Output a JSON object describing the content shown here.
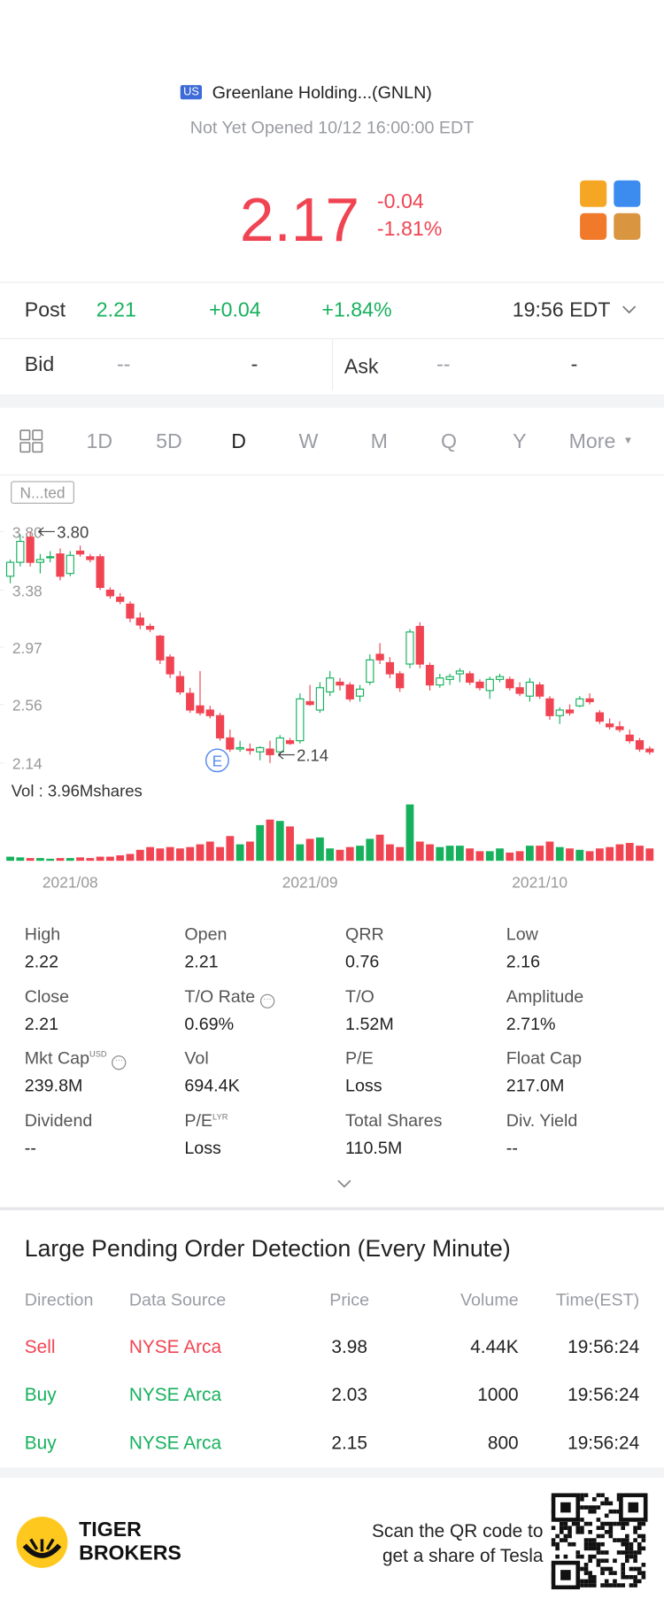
{
  "header": {
    "badge": "US",
    "name": "Greenlane Holding...(GNLN)",
    "status": "Not Yet Opened 10/12 16:00:00 EDT"
  },
  "quote": {
    "price": "2.17",
    "change": "-0.04",
    "change_pct": "-1.81%"
  },
  "post": {
    "label": "Post",
    "price": "2.21",
    "change": "+0.04",
    "change_pct": "+1.84%",
    "time": "19:56 EDT"
  },
  "bidask": {
    "bid_label": "Bid",
    "bid": "--",
    "bid_size": "-",
    "ask_label": "Ask",
    "ask": "--",
    "ask_size": "-"
  },
  "periods": [
    "1D",
    "5D",
    "D",
    "W",
    "M",
    "Q",
    "Y",
    "More"
  ],
  "chart": {
    "type": "candlestick",
    "tag": "N...ted",
    "max_label": "3.80",
    "min_label": "2.14",
    "event": "E",
    "volume_label": "Vol  : 3.96Mshares",
    "ylim": [
      2.1,
      3.85
    ],
    "yticks": [
      {
        "value": 3.8,
        "label": "3.80"
      },
      3.38,
      2.97,
      2.56,
      2.14
    ],
    "categories": [
      null,
      null,
      null,
      null,
      null,
      null,
      "2021/08",
      null,
      null,
      null,
      null,
      null,
      null,
      null,
      null,
      null,
      null,
      null,
      null,
      null,
      null,
      null,
      null,
      null,
      null,
      null,
      null,
      null,
      null,
      null,
      "2021/09",
      null,
      null,
      null,
      null,
      null,
      null,
      null,
      null,
      null,
      null,
      null,
      null,
      null,
      null,
      null,
      null,
      null,
      null,
      null,
      null,
      null,
      null,
      "2021/10",
      null,
      null,
      null,
      null,
      null,
      null,
      null,
      null,
      null,
      null,
      null
    ],
    "candles": [
      {
        "o": 3.48,
        "h": 3.6,
        "l": 3.43,
        "c": 3.58
      },
      {
        "o": 3.58,
        "h": 3.78,
        "l": 3.55,
        "c": 3.73
      },
      {
        "o": 3.76,
        "h": 3.8,
        "l": 3.55,
        "c": 3.58
      },
      {
        "o": 3.58,
        "h": 3.64,
        "l": 3.5,
        "c": 3.6
      },
      {
        "o": 3.62,
        "h": 3.66,
        "l": 3.58,
        "c": 3.62
      },
      {
        "o": 3.64,
        "h": 3.68,
        "l": 3.45,
        "c": 3.48
      },
      {
        "o": 3.5,
        "h": 3.66,
        "l": 3.48,
        "c": 3.63
      },
      {
        "o": 3.66,
        "h": 3.7,
        "l": 3.62,
        "c": 3.64
      },
      {
        "o": 3.62,
        "h": 3.64,
        "l": 3.58,
        "c": 3.6
      },
      {
        "o": 3.62,
        "h": 3.64,
        "l": 3.38,
        "c": 3.4
      },
      {
        "o": 3.38,
        "h": 3.4,
        "l": 3.32,
        "c": 3.34
      },
      {
        "o": 3.33,
        "h": 3.36,
        "l": 3.28,
        "c": 3.3
      },
      {
        "o": 3.28,
        "h": 3.3,
        "l": 3.15,
        "c": 3.18
      },
      {
        "o": 3.18,
        "h": 3.22,
        "l": 3.1,
        "c": 3.13
      },
      {
        "o": 3.12,
        "h": 3.14,
        "l": 3.08,
        "c": 3.1
      },
      {
        "o": 3.05,
        "h": 3.06,
        "l": 2.85,
        "c": 2.88
      },
      {
        "o": 2.9,
        "h": 2.92,
        "l": 2.75,
        "c": 2.78
      },
      {
        "o": 2.76,
        "h": 2.8,
        "l": 2.63,
        "c": 2.65
      },
      {
        "o": 2.64,
        "h": 2.68,
        "l": 2.5,
        "c": 2.52
      },
      {
        "o": 2.55,
        "h": 2.8,
        "l": 2.48,
        "c": 2.5
      },
      {
        "o": 2.52,
        "h": 2.55,
        "l": 2.46,
        "c": 2.48
      },
      {
        "o": 2.48,
        "h": 2.5,
        "l": 2.3,
        "c": 2.32
      },
      {
        "o": 2.32,
        "h": 2.38,
        "l": 2.22,
        "c": 2.24
      },
      {
        "o": 2.24,
        "h": 2.3,
        "l": 2.22,
        "c": 2.25
      },
      {
        "o": 2.24,
        "h": 2.28,
        "l": 2.2,
        "c": 2.23
      },
      {
        "o": 2.22,
        "h": 2.26,
        "l": 2.16,
        "c": 2.25
      },
      {
        "o": 2.24,
        "h": 2.3,
        "l": 2.14,
        "c": 2.2
      },
      {
        "o": 2.22,
        "h": 2.34,
        "l": 2.2,
        "c": 2.32
      },
      {
        "o": 2.3,
        "h": 2.32,
        "l": 2.27,
        "c": 2.28
      },
      {
        "o": 2.3,
        "h": 2.64,
        "l": 2.28,
        "c": 2.6
      },
      {
        "o": 2.58,
        "h": 2.7,
        "l": 2.55,
        "c": 2.56
      },
      {
        "o": 2.52,
        "h": 2.72,
        "l": 2.5,
        "c": 2.68
      },
      {
        "o": 2.65,
        "h": 2.8,
        "l": 2.62,
        "c": 2.75
      },
      {
        "o": 2.72,
        "h": 2.75,
        "l": 2.66,
        "c": 2.7
      },
      {
        "o": 2.7,
        "h": 2.72,
        "l": 2.58,
        "c": 2.6
      },
      {
        "o": 2.62,
        "h": 2.7,
        "l": 2.58,
        "c": 2.67
      },
      {
        "o": 2.72,
        "h": 2.92,
        "l": 2.7,
        "c": 2.88
      },
      {
        "o": 2.92,
        "h": 3.0,
        "l": 2.85,
        "c": 2.88
      },
      {
        "o": 2.86,
        "h": 2.9,
        "l": 2.75,
        "c": 2.78
      },
      {
        "o": 2.78,
        "h": 2.8,
        "l": 2.65,
        "c": 2.68
      },
      {
        "o": 2.85,
        "h": 3.1,
        "l": 2.82,
        "c": 3.08
      },
      {
        "o": 3.12,
        "h": 3.15,
        "l": 2.82,
        "c": 2.85
      },
      {
        "o": 2.84,
        "h": 2.86,
        "l": 2.66,
        "c": 2.7
      },
      {
        "o": 2.7,
        "h": 2.78,
        "l": 2.68,
        "c": 2.75
      },
      {
        "o": 2.74,
        "h": 2.78,
        "l": 2.7,
        "c": 2.76
      },
      {
        "o": 2.78,
        "h": 2.82,
        "l": 2.72,
        "c": 2.8
      },
      {
        "o": 2.78,
        "h": 2.8,
        "l": 2.7,
        "c": 2.72
      },
      {
        "o": 2.72,
        "h": 2.74,
        "l": 2.66,
        "c": 2.68
      },
      {
        "o": 2.66,
        "h": 2.76,
        "l": 2.6,
        "c": 2.74
      },
      {
        "o": 2.74,
        "h": 2.78,
        "l": 2.72,
        "c": 2.76
      },
      {
        "o": 2.74,
        "h": 2.76,
        "l": 2.66,
        "c": 2.68
      },
      {
        "o": 2.68,
        "h": 2.72,
        "l": 2.62,
        "c": 2.64
      },
      {
        "o": 2.62,
        "h": 2.75,
        "l": 2.58,
        "c": 2.72
      },
      {
        "o": 2.7,
        "h": 2.72,
        "l": 2.6,
        "c": 2.62
      },
      {
        "o": 2.6,
        "h": 2.62,
        "l": 2.45,
        "c": 2.48
      },
      {
        "o": 2.48,
        "h": 2.54,
        "l": 2.42,
        "c": 2.52
      },
      {
        "o": 2.52,
        "h": 2.56,
        "l": 2.48,
        "c": 2.5
      },
      {
        "o": 2.55,
        "h": 2.62,
        "l": 2.54,
        "c": 2.6
      },
      {
        "o": 2.6,
        "h": 2.64,
        "l": 2.56,
        "c": 2.58
      },
      {
        "o": 2.5,
        "h": 2.52,
        "l": 2.42,
        "c": 2.44
      },
      {
        "o": 2.42,
        "h": 2.46,
        "l": 2.38,
        "c": 2.4
      },
      {
        "o": 2.4,
        "h": 2.44,
        "l": 2.36,
        "c": 2.38
      },
      {
        "o": 2.34,
        "h": 2.38,
        "l": 2.28,
        "c": 2.3
      },
      {
        "o": 2.3,
        "h": 2.32,
        "l": 2.22,
        "c": 2.24
      },
      {
        "o": 2.24,
        "h": 2.26,
        "l": 2.2,
        "c": 2.22
      }
    ],
    "volume": [
      0.3,
      0.25,
      0.2,
      0.2,
      0.15,
      0.2,
      0.2,
      0.25,
      0.2,
      0.3,
      0.3,
      0.4,
      0.5,
      0.8,
      1.0,
      0.9,
      1.0,
      0.9,
      1.0,
      1.2,
      1.4,
      1.0,
      1.8,
      1.2,
      1.4,
      2.6,
      3.0,
      2.9,
      2.5,
      1.2,
      1.6,
      1.7,
      0.9,
      0.8,
      1.0,
      1.1,
      1.6,
      1.9,
      1.2,
      1.0,
      4.1,
      1.4,
      1.2,
      1.0,
      1.1,
      1.1,
      0.9,
      0.7,
      0.7,
      0.9,
      0.6,
      0.7,
      1.1,
      1.1,
      1.4,
      1.0,
      0.9,
      0.8,
      0.7,
      0.9,
      1.0,
      1.2,
      1.3,
      1.1,
      0.9
    ],
    "up_color": "#17b15d",
    "down_color": "#f04452"
  },
  "stats": [
    {
      "label": "High",
      "value": "2.22"
    },
    {
      "label": "Open",
      "value": "2.21"
    },
    {
      "label": "QRR",
      "value": "0.76"
    },
    {
      "label": "Low",
      "value": "2.16"
    },
    {
      "label": "Close",
      "value": "2.21"
    },
    {
      "label": "T/O Rate",
      "value": "0.69%",
      "info": true
    },
    {
      "label": "T/O",
      "value": "1.52M"
    },
    {
      "label": "Amplitude",
      "value": "2.71%"
    },
    {
      "label": "Mkt Cap",
      "sup": "USD",
      "value": "239.8M",
      "info": true
    },
    {
      "label": "Vol",
      "value": "694.4K"
    },
    {
      "label": "P/E",
      "value": "Loss"
    },
    {
      "label": "Float Cap",
      "value": "217.0M"
    },
    {
      "label": "Dividend",
      "value": "--"
    },
    {
      "label": "P/E",
      "sup": "LYR",
      "value": "Loss"
    },
    {
      "label": "Total Shares",
      "value": "110.5M"
    },
    {
      "label": "Div. Yield",
      "value": "--"
    }
  ],
  "orders": {
    "title": "Large Pending Order Detection (Every Minute)",
    "columns": [
      "Direction",
      "Data Source",
      "Price",
      "Volume",
      "Time(EST)"
    ],
    "rows": [
      {
        "color": "#f04452",
        "cells": [
          "Sell",
          "NYSE Arca",
          "3.98",
          "4.44K",
          "19:56:24"
        ]
      },
      {
        "color": "#17b15d",
        "cells": [
          "Buy",
          "NYSE Arca",
          "2.03",
          "1000",
          "19:56:24"
        ]
      },
      {
        "color": "#17b15d",
        "cells": [
          "Buy",
          "NYSE Arca",
          "2.15",
          "800",
          "19:56:24"
        ]
      }
    ]
  },
  "footer": {
    "brand": [
      "TIGER",
      "BROKERS"
    ],
    "scan": [
      "Scan the QR code to",
      "get a share of Tesla"
    ]
  }
}
